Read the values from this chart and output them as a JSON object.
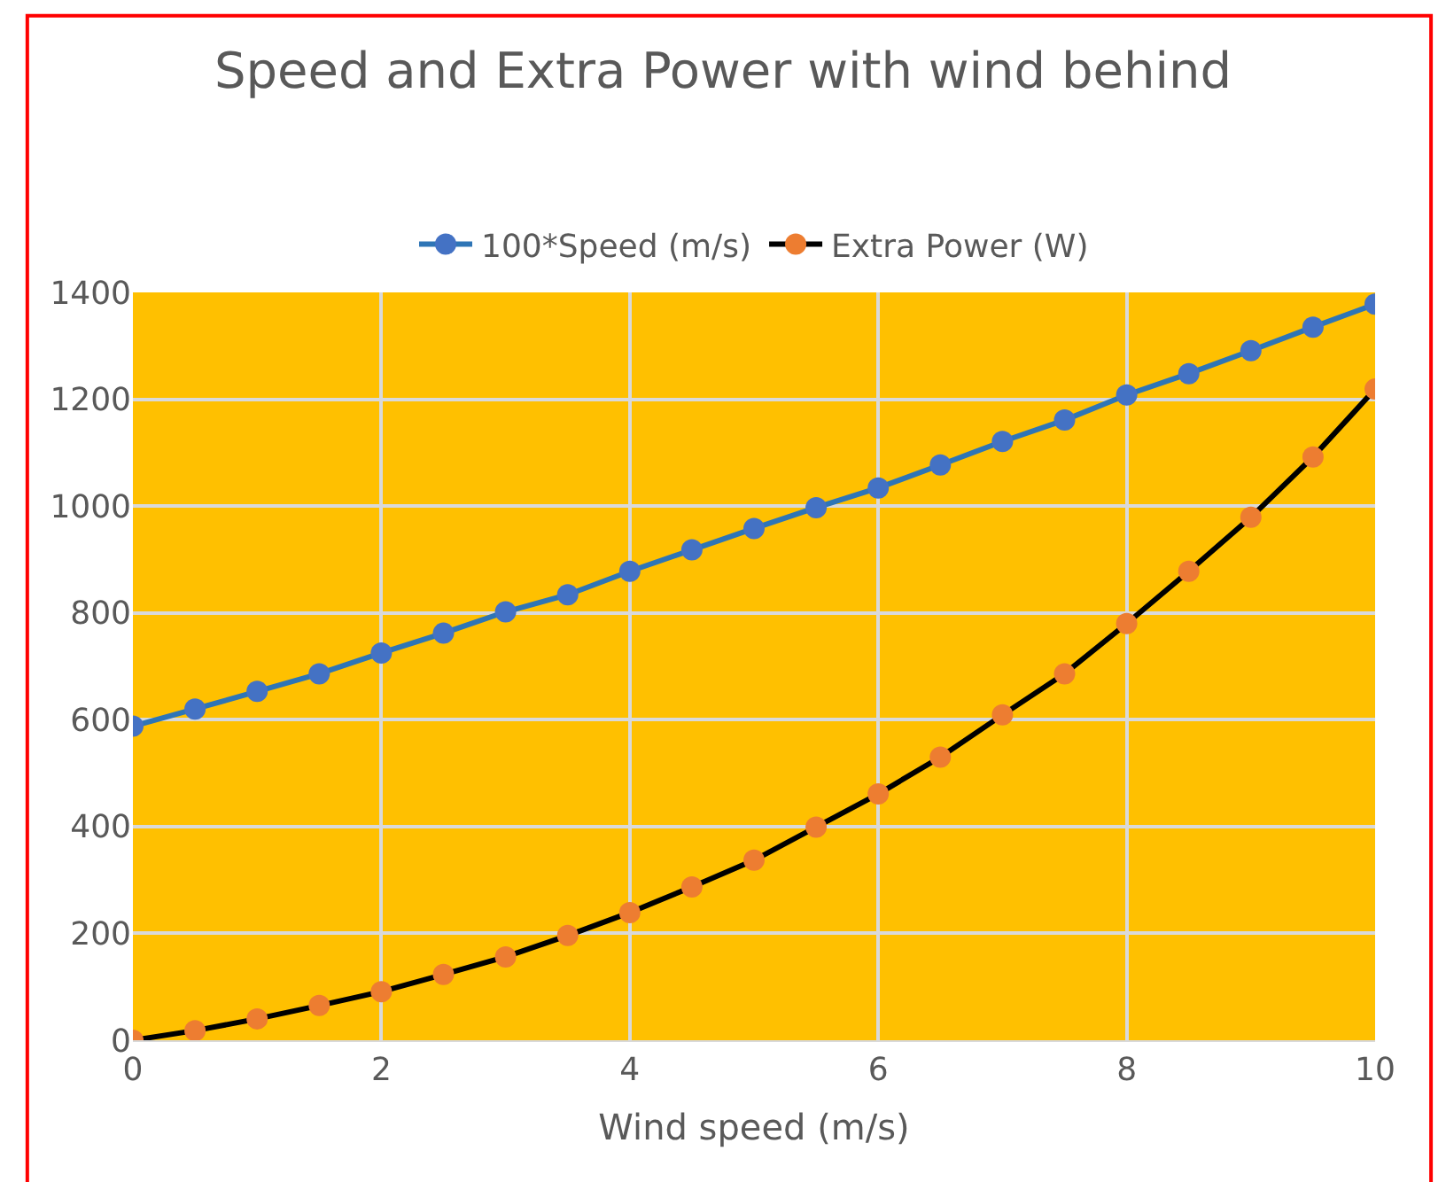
{
  "chart_data": {
    "type": "line",
    "title": "Speed and Extra Power with wind behind",
    "xlabel": "Wind speed (m/s)",
    "x": [
      0,
      0.5,
      1,
      1.5,
      2,
      2.5,
      3,
      3.5,
      4,
      4.5,
      5,
      5.5,
      6,
      6.5,
      7,
      7.5,
      8,
      8.5,
      9,
      9.5,
      10
    ],
    "series": [
      {
        "name": "100*Speed (m/s)",
        "color": "#4472c4",
        "values": [
          588,
          620,
          653,
          686,
          725,
          762,
          802,
          834,
          878,
          918,
          958,
          997,
          1034,
          1077,
          1121,
          1161,
          1208,
          1248,
          1291,
          1335,
          1378
        ]
      },
      {
        "name": "Extra Power (W)",
        "color": "#ed7d31",
        "values": [
          0,
          18,
          40,
          65,
          91,
          123,
          156,
          196,
          239,
          287,
          337,
          399,
          461,
          530,
          609,
          686,
          780,
          878,
          979,
          1092,
          1219
        ]
      }
    ],
    "xlim": [
      0,
      10
    ],
    "xticks": [
      0,
      2,
      4,
      6,
      8,
      10
    ],
    "ylim": [
      0,
      1400
    ],
    "yticks": [
      0,
      200,
      400,
      600,
      800,
      1000,
      1200,
      1400
    ],
    "grid": true,
    "legend": "top",
    "marker": "circle",
    "line_style": "solid"
  }
}
